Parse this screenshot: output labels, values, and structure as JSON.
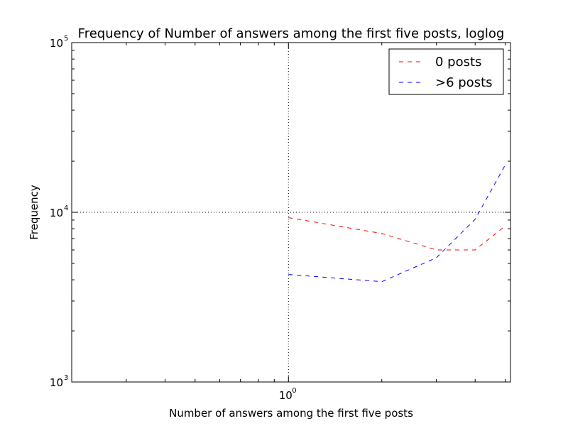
{
  "chart_data": {
    "type": "line",
    "title": "Frequency of Number of answers among the first five posts, loglog",
    "xlabel": "Number of answers among the first five posts",
    "ylabel": "Frequency",
    "x_scale": "log",
    "y_scale": "log",
    "xlim": [
      0.2,
      5.2
    ],
    "ylim": [
      1000,
      100000
    ],
    "grid": true,
    "legend_position": "top-right",
    "x_ticks": [
      {
        "base": "10",
        "exp": "0",
        "value": 1
      }
    ],
    "y_ticks": [
      {
        "base": "10",
        "exp": "3",
        "value": 1000
      },
      {
        "base": "10",
        "exp": "4",
        "value": 10000
      },
      {
        "base": "10",
        "exp": "5",
        "value": 100000
      }
    ],
    "series": [
      {
        "name": "0 posts",
        "color": "#ff0000",
        "dash": "dashed",
        "x": [
          1,
          2,
          3,
          4,
          5
        ],
        "y": [
          9300,
          7500,
          6000,
          6000,
          8300
        ]
      },
      {
        "name": ">6 posts",
        "color": "#0000ff",
        "dash": "dashed",
        "x": [
          1,
          2,
          3,
          4,
          5
        ],
        "y": [
          4300,
          3900,
          5400,
          9100,
          19000
        ]
      }
    ]
  }
}
